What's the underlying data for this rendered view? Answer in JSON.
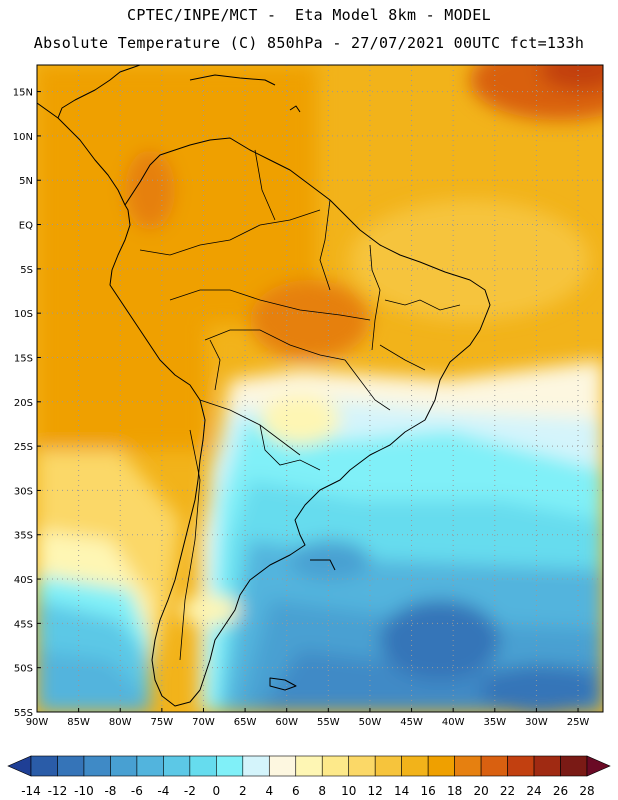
{
  "header": {
    "line1": "CPTEC/INPE/MCT -  Eta Model 8km - MODEL",
    "line2": "Absolute Temperature (C) 850hPa - 27/07/2021 00UTC fct=133h"
  },
  "map": {
    "lat_labels": [
      "15N",
      "10N",
      "5N",
      "EQ",
      "5S",
      "10S",
      "15S",
      "20S",
      "25S",
      "30S",
      "35S",
      "40S",
      "45S",
      "50S",
      "55S"
    ],
    "lon_labels": [
      "90W",
      "85W",
      "80W",
      "75W",
      "70W",
      "65W",
      "60W",
      "55W",
      "50W",
      "45W",
      "40W",
      "35W",
      "30W",
      "25W"
    ],
    "lat_range": [
      -55,
      18
    ],
    "lon_range": [
      -90,
      -22
    ],
    "grid": "dotted every 5 degrees"
  },
  "colorbar": {
    "labels": [
      "-14",
      "-12",
      "-10",
      "-8",
      "-6",
      "-4",
      "-2",
      "0",
      "2",
      "4",
      "6",
      "8",
      "10",
      "12",
      "14",
      "16",
      "18",
      "20",
      "22",
      "24",
      "26",
      "28"
    ],
    "colors": [
      "#1f3f95",
      "#2a5ca8",
      "#3574b8",
      "#3f8ac6",
      "#48a0d2",
      "#52b4dd",
      "#5cc8e6",
      "#66dcee",
      "#80f0f8",
      "#d4f4fb",
      "#fdf7e0",
      "#fef6b4",
      "#fde98a",
      "#fbd867",
      "#f6c43c",
      "#f2b31a",
      "#efa000",
      "#e68010",
      "#d96010",
      "#c24010",
      "#a02a12",
      "#7a1a15",
      "#6a0a25"
    ]
  }
}
